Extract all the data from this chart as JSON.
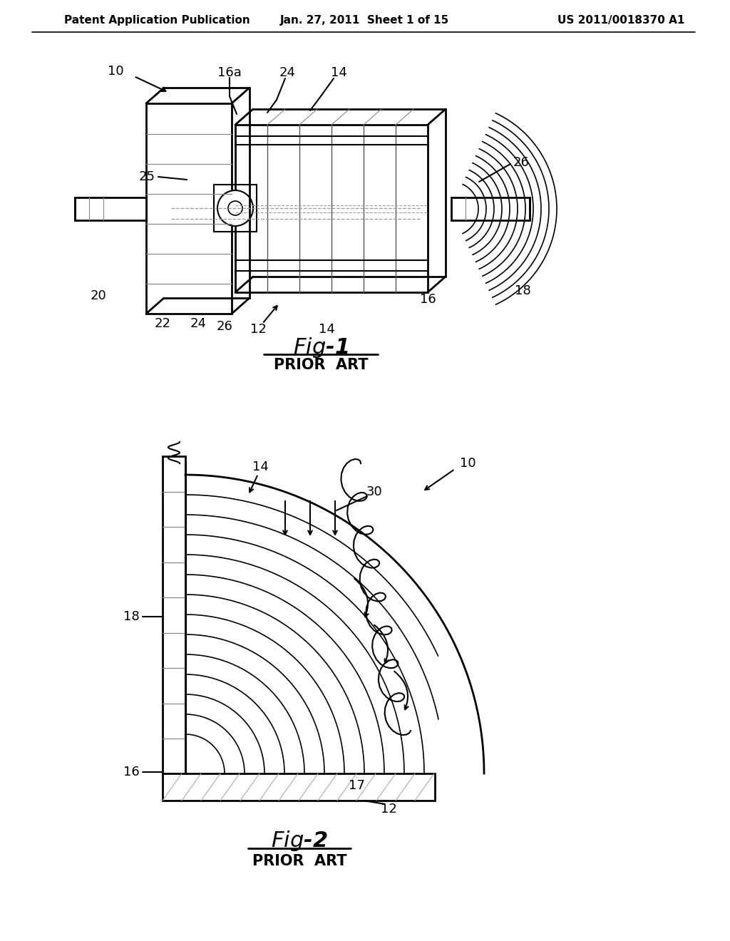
{
  "bg_color": "#ffffff",
  "header_left": "Patent Application Publication",
  "header_mid": "Jan. 27, 2011  Sheet 1 of 15",
  "header_right": "US 2011/0018370 A1",
  "fig1_caption": "Fig-1",
  "fig1_sub": "PRIOR  ART",
  "fig2_caption": "Fig-2",
  "fig2_sub": "PRIOR  ART",
  "line_color": "#000000"
}
